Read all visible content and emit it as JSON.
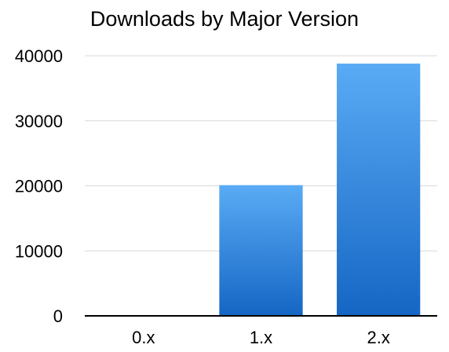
{
  "chart_data": {
    "type": "bar",
    "title": "Downloads by Major Version",
    "categories": [
      "0.x",
      "1.x",
      "2.x"
    ],
    "values": [
      0,
      20100,
      38800
    ],
    "ylim": [
      0,
      40000
    ],
    "yticks": [
      0,
      10000,
      20000,
      30000,
      40000
    ],
    "xlabel": "",
    "ylabel": "",
    "grid": true,
    "colors": {
      "bar_top": "#5aabf5",
      "bar_bottom": "#1566c4",
      "grid": "#d9d9d9",
      "axis": "#000000"
    }
  }
}
